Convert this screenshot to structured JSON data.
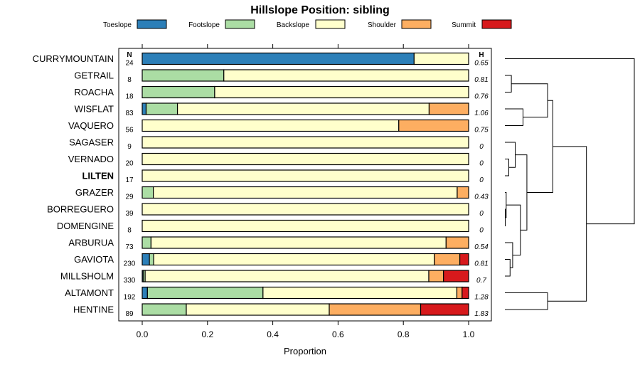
{
  "chart_data": {
    "type": "bar",
    "orientation": "horizontal-stacked",
    "title": "Hillslope Position: sibling",
    "xlabel": "Proportion",
    "ylabel": "",
    "xlim": [
      0,
      1
    ],
    "xticks": [
      "0.0",
      "0.2",
      "0.4",
      "0.6",
      "0.8",
      "1.0"
    ],
    "n_header": "N",
    "h_header": "H",
    "legend": [
      {
        "name": "Toeslope",
        "color": "#2c7fb8"
      },
      {
        "name": "Footslope",
        "color": "#abdda4"
      },
      {
        "name": "Backslope",
        "color": "#ffffcc"
      },
      {
        "name": "Shoulder",
        "color": "#fdae61"
      },
      {
        "name": "Summit",
        "color": "#d7191c"
      }
    ],
    "rows": [
      {
        "name": "CURRYMOUNTAIN",
        "n": "24",
        "h": "0.65",
        "bold": false,
        "values": [
          0.833,
          0,
          0.167,
          0,
          0
        ]
      },
      {
        "name": "GETRAIL",
        "n": "8",
        "h": "0.81",
        "bold": false,
        "values": [
          0,
          0.25,
          0.75,
          0,
          0
        ]
      },
      {
        "name": "ROACHA",
        "n": "18",
        "h": "0.76",
        "bold": false,
        "values": [
          0,
          0.222,
          0.778,
          0,
          0
        ]
      },
      {
        "name": "WISFLAT",
        "n": "83",
        "h": "1.06",
        "bold": false,
        "values": [
          0.012,
          0.096,
          0.771,
          0.121,
          0
        ]
      },
      {
        "name": "VAQUERO",
        "n": "56",
        "h": "0.75",
        "bold": false,
        "values": [
          0,
          0,
          0.786,
          0.214,
          0
        ]
      },
      {
        "name": "SAGASER",
        "n": "9",
        "h": "0",
        "bold": false,
        "values": [
          0,
          0,
          1,
          0,
          0
        ]
      },
      {
        "name": "VERNADO",
        "n": "20",
        "h": "0",
        "bold": false,
        "values": [
          0,
          0,
          1,
          0,
          0
        ]
      },
      {
        "name": "LILTEN",
        "n": "17",
        "h": "0",
        "bold": true,
        "values": [
          0,
          0,
          1,
          0,
          0
        ]
      },
      {
        "name": "GRAZER",
        "n": "29",
        "h": "0.43",
        "bold": false,
        "values": [
          0,
          0.034,
          0.931,
          0.035,
          0
        ]
      },
      {
        "name": "BORREGUERO",
        "n": "39",
        "h": "0",
        "bold": false,
        "values": [
          0,
          0,
          1,
          0,
          0
        ]
      },
      {
        "name": "DOMENGINE",
        "n": "8",
        "h": "0",
        "bold": false,
        "values": [
          0,
          0,
          1,
          0,
          0
        ]
      },
      {
        "name": "ARBURUA",
        "n": "73",
        "h": "0.54",
        "bold": false,
        "values": [
          0,
          0.027,
          0.904,
          0.069,
          0
        ]
      },
      {
        "name": "GAVIOTA",
        "n": "230",
        "h": "0.81",
        "bold": false,
        "values": [
          0.022,
          0.013,
          0.86,
          0.078,
          0.027
        ]
      },
      {
        "name": "MILLSHOLM",
        "n": "330",
        "h": "0.7",
        "bold": false,
        "values": [
          0.003,
          0.006,
          0.869,
          0.045,
          0.077
        ]
      },
      {
        "name": "ALTAMONT",
        "n": "192",
        "h": "1.28",
        "bold": false,
        "values": [
          0.016,
          0.354,
          0.594,
          0.016,
          0.02
        ]
      },
      {
        "name": "HENTINE",
        "n": "89",
        "h": "1.83",
        "bold": false,
        "values": [
          0,
          0.135,
          0.438,
          0.28,
          0.147
        ]
      }
    ],
    "dendrogram": {
      "leaves": [
        "CURRYMOUNTAIN",
        "GETRAIL",
        "ROACHA",
        "WISFLAT",
        "VAQUERO",
        "SAGASER",
        "VERNADO",
        "LILTEN",
        "GRAZER",
        "BORREGUERO",
        "DOMENGINE",
        "ARBURUA",
        "GAVIOTA",
        "MILLSHOLM",
        "ALTAMONT",
        "HENTINE"
      ],
      "merges": [
        {
          "a": 1,
          "b": 2,
          "height": 0.05
        },
        {
          "a": 3,
          "b": 4,
          "height": 0.14
        },
        {
          "a": "m0",
          "b": "m1",
          "height": 0.33
        },
        {
          "a": 6,
          "b": 7,
          "height": 0.03
        },
        {
          "a": 5,
          "b": "m3",
          "height": 0.08
        },
        {
          "a": 9,
          "b": 10,
          "height": 0.003
        },
        {
          "a": 8,
          "b": "m5",
          "height": 0.01
        },
        {
          "a": 12,
          "b": 13,
          "height": 0.04
        },
        {
          "a": 11,
          "b": "m7",
          "height": 0.06
        },
        {
          "a": "m6",
          "b": "m8",
          "height": 0.12
        },
        {
          "a": "m4",
          "b": "m9",
          "height": 0.17
        },
        {
          "a": "m2",
          "b": "m10",
          "height": 0.37
        },
        {
          "a": 14,
          "b": 15,
          "height": 0.33
        },
        {
          "a": "m11",
          "b": "m12",
          "height": 0.63
        },
        {
          "a": 0,
          "b": "m13",
          "height": 1.0
        }
      ]
    }
  }
}
